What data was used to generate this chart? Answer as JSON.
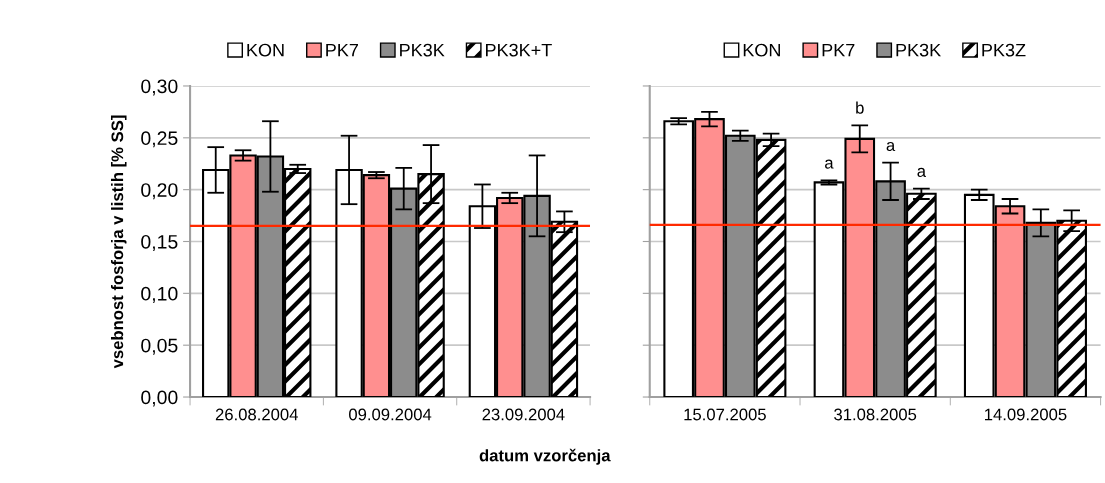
{
  "chart_data": [
    {
      "type": "bar",
      "categories": [
        "26.08.2004",
        "09.09.2004",
        "23.09.2004"
      ],
      "xlabel": "datum vzorčenja",
      "ylabel": "vsebnost fosforja v listih [% SS]",
      "ylim": [
        0,
        0.3
      ],
      "yticks": [
        {
          "value": 0,
          "label": "0,00"
        },
        {
          "value": 0.05,
          "label": "0,05"
        },
        {
          "value": 0.1,
          "label": "0,10"
        },
        {
          "value": 0.15,
          "label": "0,15"
        },
        {
          "value": 0.2,
          "label": "0,20"
        },
        {
          "value": 0.25,
          "label": "0,25"
        },
        {
          "value": 0.3,
          "label": "0,30"
        }
      ],
      "grid": "y",
      "legend": "top",
      "series": [
        {
          "name": "KON",
          "color": "#ffffff",
          "values": [
            0.219,
            0.219,
            0.184
          ],
          "errors": [
            0.022,
            0.033,
            0.021
          ]
        },
        {
          "name": "PK7",
          "color": "#ff8f8f",
          "values": [
            0.233,
            0.214,
            0.192
          ],
          "errors": [
            0.005,
            0.003,
            0.005
          ]
        },
        {
          "name": "PK3K",
          "color": "#8c8c8c",
          "values": [
            0.232,
            0.201,
            0.194
          ],
          "errors": [
            0.034,
            0.02,
            0.039
          ]
        },
        {
          "name": "PK3K+T",
          "color": "#000000",
          "values": [
            0.22,
            0.215,
            0.169
          ],
          "errors": [
            0.004,
            0.028,
            0.01
          ]
        }
      ],
      "ref_lines": [
        {
          "axis": "y",
          "value": 0.165,
          "color": "#ff2a00"
        }
      ]
    },
    {
      "type": "bar",
      "categories": [
        "15.07.2005",
        "31.08.2005",
        "14.09.2005"
      ],
      "ylim": [
        0,
        0.3
      ],
      "yticks": [
        0,
        0.05,
        0.1,
        0.15,
        0.2,
        0.25,
        0.3
      ],
      "tick_labels": "x",
      "grid": "y",
      "legend": "top",
      "series": [
        {
          "name": "KON",
          "color": "#ffffff",
          "values": [
            0.266,
            0.207,
            0.195
          ],
          "errors": [
            0.003,
            0.002,
            0.005
          ],
          "value_labels": [
            null,
            "a",
            null
          ]
        },
        {
          "name": "PK7",
          "color": "#ff8f8f",
          "values": [
            0.268,
            0.249,
            0.184
          ],
          "errors": [
            0.007,
            0.013,
            0.007
          ],
          "value_labels": [
            null,
            "b",
            null
          ]
        },
        {
          "name": "PK3K",
          "color": "#8c8c8c",
          "values": [
            0.252,
            0.208,
            0.168
          ],
          "errors": [
            0.005,
            0.018,
            0.013
          ],
          "value_labels": [
            null,
            "a",
            null
          ]
        },
        {
          "name": "PK3Z",
          "color": "#000000",
          "values": [
            0.248,
            0.196,
            0.17
          ],
          "errors": [
            0.006,
            0.005,
            0.01
          ],
          "value_labels": [
            null,
            "a",
            null
          ]
        }
      ],
      "ref_lines": [
        {
          "axis": "y",
          "value": 0.166,
          "color": "#ff2a00"
        }
      ]
    }
  ]
}
